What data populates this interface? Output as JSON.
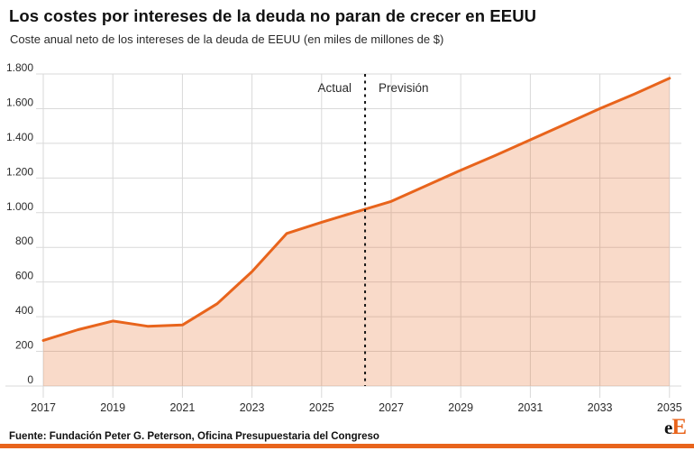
{
  "header": {
    "title": "Los costes por intereses de la deuda no paran de crecer en EEUU",
    "subtitle": "Coste anual neto de los intereses de la deuda de EEUU (en miles de millones de $)"
  },
  "chart_data": {
    "type": "area",
    "title": "Los costes por intereses de la deuda no paran de crecer en EEUU",
    "subtitle": "Coste anual neto de los intereses de la deuda de EEUU (en miles de millones de $)",
    "x": [
      2017,
      2018,
      2019,
      2020,
      2021,
      2022,
      2023,
      2024,
      2025,
      2026,
      2027,
      2028,
      2029,
      2030,
      2031,
      2032,
      2033,
      2034,
      2035
    ],
    "values": [
      263,
      325,
      375,
      345,
      352,
      475,
      660,
      880,
      945,
      1005,
      1065,
      1155,
      1245,
      1330,
      1420,
      1510,
      1600,
      1685,
      1775
    ],
    "series_name": "Coste anual neto de intereses (miles de millones de $)",
    "ylim": [
      0,
      1800
    ],
    "ytick_interval": 200,
    "ytick_labels": [
      "0",
      "200",
      "400",
      "600",
      "800",
      "1.000",
      "1.200",
      "1.400",
      "1.600",
      "1.800"
    ],
    "xticks": [
      2017,
      2019,
      2021,
      2023,
      2025,
      2027,
      2029,
      2031,
      2033,
      2035
    ],
    "xtick_labels": [
      "2017",
      "2019",
      "2021",
      "2023",
      "2025",
      "2027",
      "2029",
      "2031",
      "2033",
      "2035"
    ],
    "grid": true,
    "legend": "none",
    "divider": {
      "x": 2026.25,
      "style": "dashed"
    },
    "annotations": [
      {
        "text": "Actual",
        "side": "left"
      },
      {
        "text": "Previsión",
        "side": "right"
      }
    ],
    "colors": {
      "line": "#e8641c",
      "fill_rgba": "rgba(232,100,28,0.24)",
      "grid": "#d9d9d9",
      "divider": "#161616",
      "axis_text": "#2b2b2b",
      "accent": "#e8641c"
    }
  },
  "footer": {
    "source": "Fuente: Fundación Peter G. Peterson, Oficina Presupuestaria del Congreso",
    "logo_e": "e",
    "logo_E": "E"
  }
}
